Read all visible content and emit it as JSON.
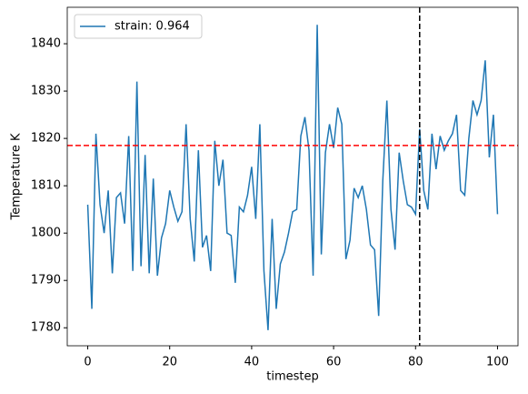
{
  "chart_data": {
    "type": "line",
    "x_label": "timestep",
    "y_label": "Temperature K",
    "x": [
      0,
      1,
      2,
      3,
      4,
      5,
      6,
      7,
      8,
      9,
      10,
      11,
      12,
      13,
      14,
      15,
      16,
      17,
      18,
      19,
      20,
      21,
      22,
      23,
      24,
      25,
      26,
      27,
      28,
      29,
      30,
      31,
      32,
      33,
      34,
      35,
      36,
      37,
      38,
      39,
      40,
      41,
      42,
      43,
      44,
      45,
      46,
      47,
      48,
      49,
      50,
      51,
      52,
      53,
      54,
      55,
      56,
      57,
      58,
      59,
      60,
      61,
      62,
      63,
      64,
      65,
      66,
      67,
      68,
      69,
      70,
      71,
      72,
      73,
      74,
      75,
      76,
      77,
      78,
      79,
      80,
      81,
      82,
      83,
      84,
      85,
      86,
      87,
      88,
      89,
      90,
      91,
      92,
      93,
      94,
      95,
      96,
      97,
      98,
      99,
      100
    ],
    "series": [
      {
        "name": "strain: 0.964",
        "color": "#1f77b4",
        "values": [
          1806,
          1784,
          1821,
          1806,
          1800,
          1809,
          1791.5,
          1807.5,
          1808.5,
          1802,
          1820.5,
          1792,
          1832,
          1793,
          1816.5,
          1791.5,
          1811.5,
          1791,
          1799,
          1802,
          1809,
          1805.5,
          1802.5,
          1804.5,
          1823,
          1803,
          1794,
          1817.5,
          1797,
          1799.5,
          1792,
          1819.5,
          1810,
          1815.5,
          1800,
          1799.5,
          1789.5,
          1805.5,
          1804.5,
          1808,
          1814,
          1803,
          1823,
          1792,
          1779.5,
          1803,
          1784,
          1793.5,
          1796,
          1800,
          1804.5,
          1805,
          1820.5,
          1824.5,
          1817.5,
          1791,
          1844,
          1795.5,
          1817,
          1823,
          1818,
          1826.5,
          1823,
          1794.5,
          1798.5,
          1809.5,
          1807.5,
          1810,
          1805,
          1797.5,
          1796.5,
          1782.5,
          1811,
          1828,
          1805,
          1796.5,
          1817,
          1811,
          1806,
          1805.5,
          1804,
          1822,
          1809,
          1805,
          1821,
          1813.5,
          1820.5,
          1817.5,
          1819.5,
          1821,
          1825,
          1809,
          1808,
          1820,
          1828,
          1825,
          1828,
          1836.5,
          1816,
          1825,
          1804
        ]
      }
    ],
    "hlines": [
      {
        "value": 1818.5,
        "color": "#ff0000"
      }
    ],
    "vlines": [
      {
        "value": 81,
        "color": "#000000"
      }
    ],
    "xlim": [
      -5,
      105
    ],
    "xticks": [
      0,
      20,
      40,
      60,
      80,
      100
    ],
    "ylim": [
      1776.2,
      1847.7
    ],
    "yticks": [
      1780,
      1790,
      1800,
      1810,
      1820,
      1830,
      1840
    ],
    "legend": "upper left"
  }
}
